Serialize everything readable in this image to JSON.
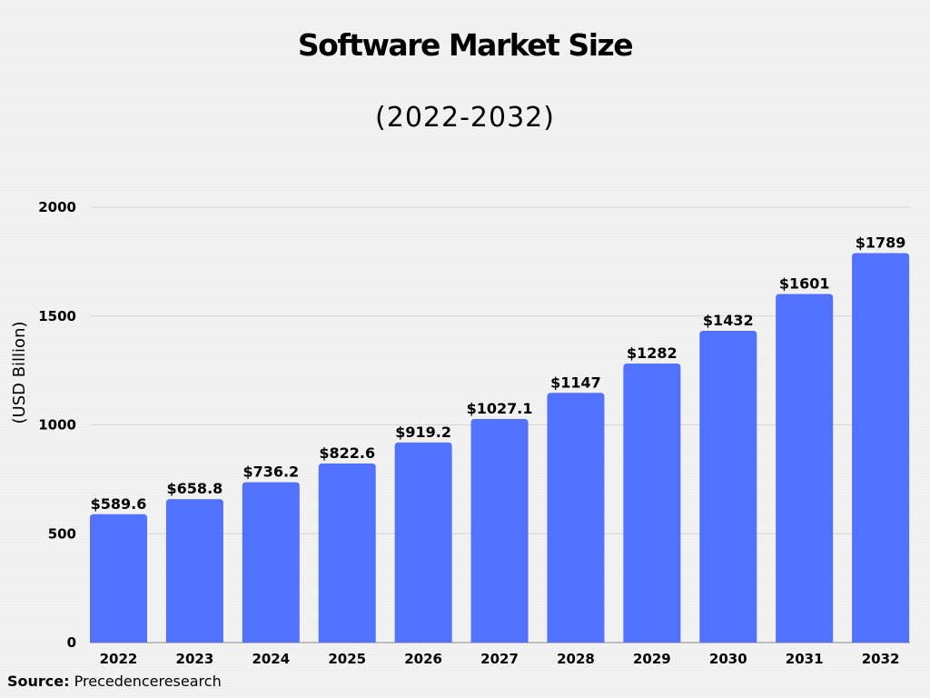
{
  "chart_data": {
    "type": "bar",
    "title": "Software Market Size",
    "subtitle": "(2022-2032)",
    "xlabel": "",
    "ylabel": "(USD Billion)",
    "categories": [
      "2022",
      "2023",
      "2024",
      "2025",
      "2026",
      "2027",
      "2028",
      "2029",
      "2030",
      "2031",
      "2032"
    ],
    "values": [
      589.6,
      658.8,
      736.2,
      822.6,
      919.2,
      1027.1,
      1147,
      1282,
      1432,
      1601,
      1789
    ],
    "data_labels": [
      "$589.6",
      "$658.8",
      "$736.2",
      "$822.6",
      "$919.2",
      "$1027.1",
      "$1147",
      "$1282",
      "$1432",
      "$1601",
      "$1789"
    ],
    "ylim": [
      0,
      2000
    ],
    "yticks": [
      0,
      500,
      1000,
      1500,
      2000
    ],
    "grid": true,
    "bar_color": "#5271ff"
  },
  "source": {
    "label": "Source:",
    "text": "Precedenceresearch"
  }
}
